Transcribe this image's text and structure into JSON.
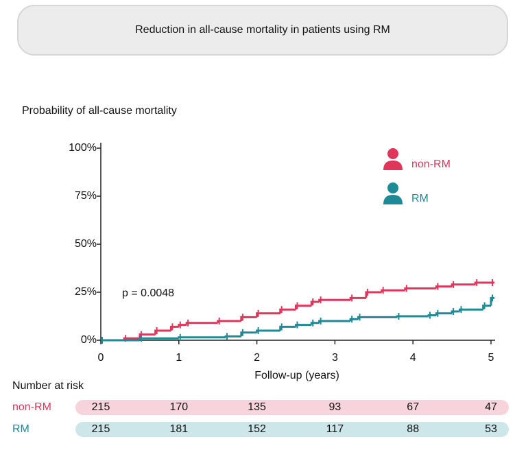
{
  "chart_data": {
    "type": "step",
    "title": "Reduction in all-cause mortality in patients using RM",
    "y_label": "Probability of all-cause mortality",
    "x_label": "Follow-up (years)",
    "annotation": "p = 0.0048",
    "xlim": [
      0,
      5
    ],
    "ylim": [
      0,
      100
    ],
    "xticks": [
      0,
      1,
      2,
      3,
      4,
      5
    ],
    "yticks": [
      {
        "value": 0,
        "label": "0%"
      },
      {
        "value": 25,
        "label": "25%"
      },
      {
        "value": 50,
        "label": "50%"
      },
      {
        "value": 75,
        "label": "75%"
      },
      {
        "value": 100,
        "label": "100%"
      }
    ],
    "series": [
      {
        "name": "non-RM",
        "color": "#e0365b",
        "x": [
          0,
          0.3,
          0.5,
          0.7,
          0.9,
          1.0,
          1.1,
          1.5,
          1.8,
          2.0,
          2.3,
          2.5,
          2.7,
          2.8,
          3.2,
          3.4,
          3.6,
          3.9,
          4.3,
          4.5,
          4.8,
          5.0
        ],
        "values": [
          0,
          1,
          3,
          5,
          7,
          8,
          9,
          10,
          12,
          14,
          16,
          18,
          20,
          21,
          22,
          25,
          26,
          27,
          28,
          29,
          30,
          30
        ]
      },
      {
        "name": "RM",
        "color": "#1d8a96",
        "x": [
          0,
          0.5,
          1.0,
          1.6,
          1.8,
          2.0,
          2.3,
          2.5,
          2.7,
          2.8,
          3.2,
          3.3,
          3.8,
          4.2,
          4.3,
          4.5,
          4.6,
          4.9,
          5.0
        ],
        "values": [
          0,
          1,
          1.5,
          2,
          4,
          5,
          7,
          8,
          9,
          10,
          11,
          12,
          12.5,
          13,
          14,
          15,
          16,
          18,
          22
        ]
      }
    ]
  },
  "risk_table": {
    "title": "Number at risk",
    "rows": [
      {
        "label": "non-RM",
        "values": [
          "215",
          "170",
          "135",
          "93",
          "67",
          "47"
        ]
      },
      {
        "label": "RM",
        "values": [
          "215",
          "181",
          "152",
          "117",
          "88",
          "53"
        ]
      }
    ]
  }
}
